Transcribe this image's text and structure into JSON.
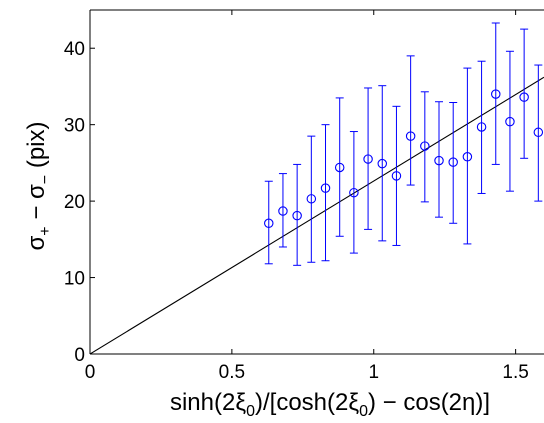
{
  "chart_data": {
    "type": "scatter",
    "xlabel": "sinh(2ξ₀)/[cosh(2ξ₀) − cos(2η)]",
    "xlabel_parts": {
      "a": "sinh(2ξ",
      "sub1": "0",
      "b": ")/[cosh(2ξ",
      "sub2": "0",
      "c": ") − cos(2η)]"
    },
    "ylabel": "σ₊ − σ₋ (pix)",
    "ylabel_parts": {
      "a": "σ",
      "sub1": "+",
      "b": " − σ",
      "sub2": "−",
      "c": " (pix)"
    },
    "xlim": [
      0,
      1.6
    ],
    "ylim": [
      0,
      45
    ],
    "x_ticks": [
      0,
      0.5,
      1,
      1.5
    ],
    "x_tick_labels": [
      "0",
      "0.5",
      "1",
      "1.5"
    ],
    "y_ticks": [
      0,
      10,
      20,
      30,
      40
    ],
    "y_tick_labels": [
      "0",
      "10",
      "20",
      "30",
      "40"
    ],
    "grid": false,
    "marker_color": "#0000ff",
    "fit_color": "#000000",
    "fit_line": {
      "x": [
        0,
        1.6
      ],
      "y": [
        0,
        36.2
      ]
    },
    "series": [
      {
        "x": [
          0.63,
          0.68,
          0.73,
          0.78,
          0.83,
          0.88,
          0.93,
          0.98,
          1.03,
          1.08,
          1.13,
          1.18,
          1.23,
          1.28,
          1.33,
          1.38,
          1.43,
          1.48,
          1.53,
          1.58
        ],
        "y": [
          17.1,
          18.7,
          18.1,
          20.3,
          21.7,
          24.4,
          21.1,
          25.5,
          24.9,
          23.3,
          28.5,
          27.2,
          25.3,
          25.1,
          25.8,
          29.7,
          34.0,
          30.4,
          33.6,
          29.0
        ],
        "ylow": [
          11.8,
          14.0,
          11.6,
          12.0,
          12.2,
          15.4,
          13.2,
          16.3,
          14.8,
          14.2,
          22.1,
          19.9,
          17.9,
          17.1,
          14.4,
          21.0,
          24.8,
          21.3,
          25.6,
          20.0
        ],
        "yhigh": [
          22.6,
          23.6,
          24.8,
          28.5,
          30.0,
          33.5,
          29.1,
          34.8,
          35.1,
          32.4,
          39.0,
          34.3,
          33.0,
          32.9,
          37.4,
          38.3,
          43.3,
          39.6,
          42.5,
          37.8
        ]
      }
    ]
  }
}
